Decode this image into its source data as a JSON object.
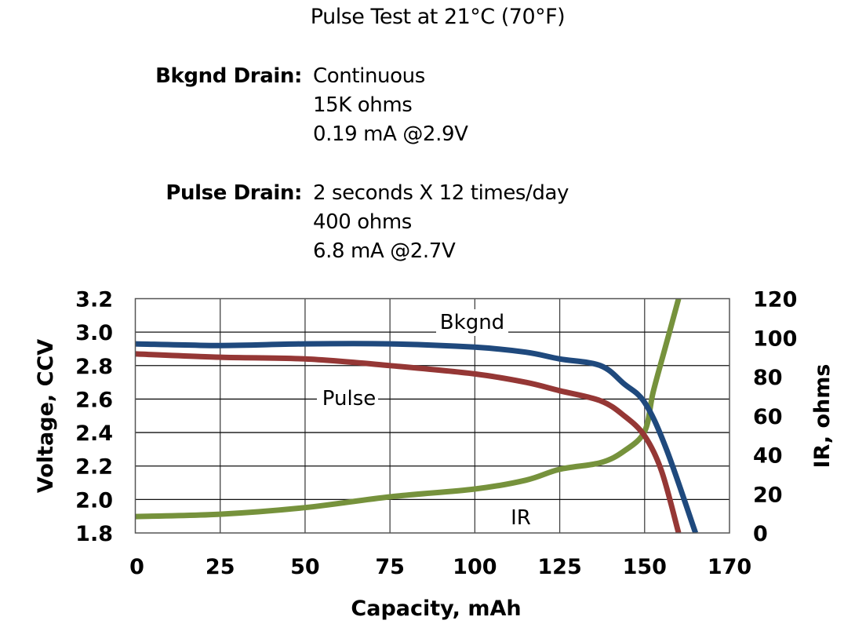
{
  "header": {
    "title": "Pulse Test at 21°C (70°F)",
    "bkgnd_drain": {
      "label": "Bkgnd Drain:",
      "lines": [
        "Continuous",
        "15K ohms",
        "0.19 mA @2.9V"
      ]
    },
    "pulse_drain": {
      "label": "Pulse Drain:",
      "lines": [
        "2 seconds X 12 times/day",
        "400 ohms",
        "6.8 mA @2.7V"
      ]
    }
  },
  "chart_data": {
    "type": "line",
    "title": "Pulse Test at 21°C (70°F)",
    "xlabel": "Capacity, mAh",
    "ylabel": "Voltage, CCV",
    "y2label": "IR, ohms",
    "x_ticks": [
      "0",
      "25",
      "50",
      "75",
      "100",
      "125",
      "150",
      "170"
    ],
    "x_tick_values": [
      0,
      25,
      50,
      75,
      100,
      125,
      150,
      170
    ],
    "y_ticks": [
      "3.2",
      "3.0",
      "2.8",
      "2.6",
      "2.4",
      "2.2",
      "2.0",
      "1.8"
    ],
    "y2_ticks": [
      "120",
      "100",
      "80",
      "60",
      "40",
      "20",
      "0"
    ],
    "ylim": [
      1.8,
      3.2
    ],
    "y2lim": [
      0,
      120
    ],
    "xlim": [
      0,
      170
    ],
    "grid": true,
    "series": [
      {
        "name": "Bkgnd",
        "axis": "left",
        "color": "#1f497d",
        "x": [
          0,
          25,
          50,
          75,
          100,
          115,
          125,
          137,
          144,
          150,
          155,
          162
        ],
        "y": [
          2.93,
          2.92,
          2.93,
          2.93,
          2.91,
          2.88,
          2.84,
          2.8,
          2.69,
          2.58,
          2.31,
          1.8
        ]
      },
      {
        "name": "Pulse",
        "axis": "left",
        "color": "#953735",
        "x": [
          0,
          25,
          50,
          75,
          100,
          115,
          125,
          137,
          144,
          150,
          154,
          158
        ],
        "y": [
          2.87,
          2.85,
          2.84,
          2.8,
          2.75,
          2.7,
          2.65,
          2.59,
          2.5,
          2.38,
          2.17,
          1.8
        ]
      },
      {
        "name": "IR",
        "axis": "right",
        "color": "#76923c",
        "x": [
          0,
          25,
          50,
          75,
          100,
          115,
          125,
          137,
          144,
          150,
          152,
          155,
          158
        ],
        "y": [
          8.4,
          9.6,
          13,
          18.5,
          22.5,
          27,
          32.6,
          36,
          42,
          52,
          72,
          96,
          120
        ]
      }
    ]
  }
}
